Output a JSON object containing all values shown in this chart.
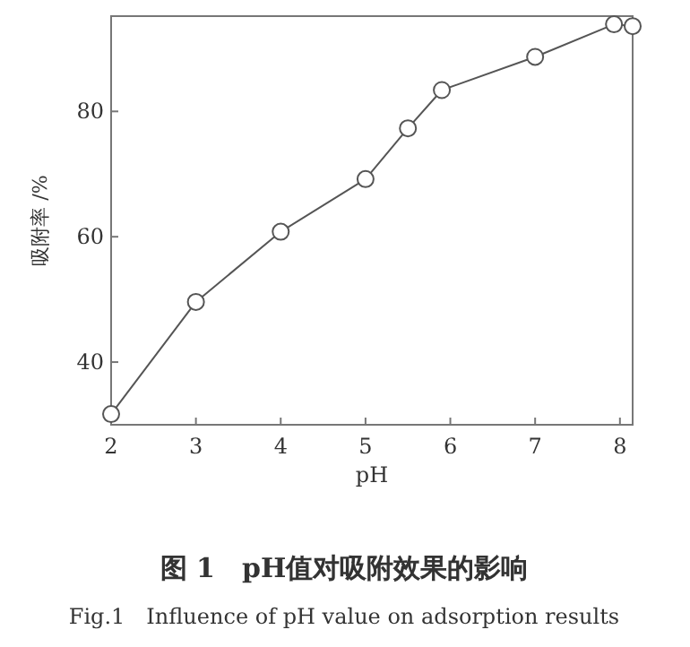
{
  "chart_data": {
    "type": "line",
    "title": "图 1　pH值对吸附效果的影响",
    "subtitle": "Fig.1　Influence of pH value on adsorption results",
    "xlabel": "pH",
    "ylabel": "吸附率 /%",
    "x": [
      2,
      3,
      4,
      5,
      5.5,
      5.9,
      7,
      7.93,
      8.15
    ],
    "series": [
      {
        "color": "#555555",
        "values": [
          31.7,
          49.6,
          60.8,
          69.2,
          77.3,
          83.4,
          88.7,
          93.9,
          93.6
        ]
      }
    ],
    "xlim": [
      2,
      8.15
    ],
    "ylim": [
      30,
      95.2
    ],
    "xticks": [
      2,
      3,
      4,
      5,
      6,
      7,
      8
    ],
    "yticks": [
      40,
      60,
      80
    ],
    "marker": "circle",
    "line_style": "solid",
    "grid": false
  }
}
